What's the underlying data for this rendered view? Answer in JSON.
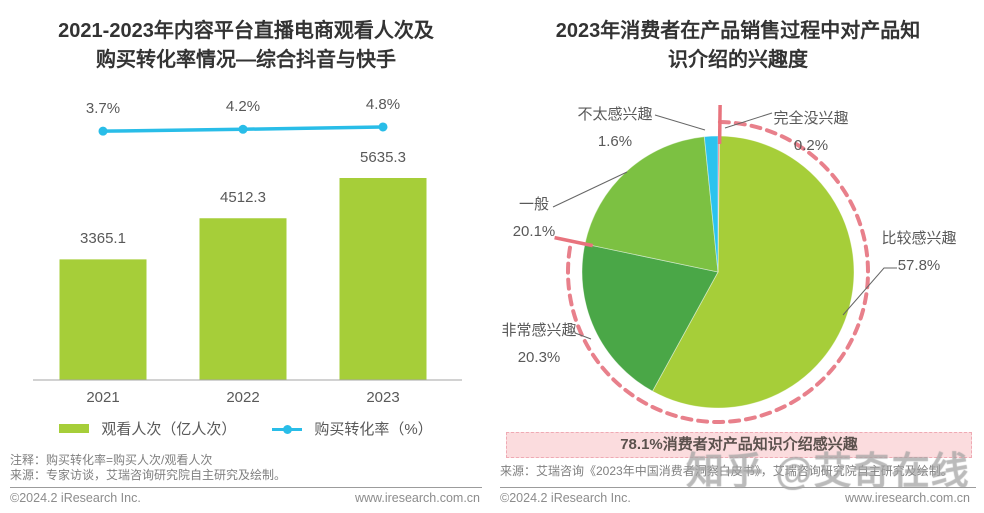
{
  "watermark": {
    "text": "知乎 @艾奇在线"
  },
  "left_panel": {
    "title_line1": "2021-2023年内容平台直播电商观看人次及",
    "title_line2": "购买转化率情况—综合抖音与快手",
    "note1": "注释：购买转化率=购买人次/观看人次",
    "note2": "来源：专家访谈，艾瑞咨询研究院自主研究及绘制。",
    "footer_left": "©2024.2 iResearch Inc.",
    "footer_right": "www.iresearch.com.cn"
  },
  "right_panel": {
    "title_line1": "2023年消费者在产品销售过程中对产品知",
    "title_line2": "识介绍的兴趣度",
    "note1": "来源：艾瑞咨询《2023年中国消费者洞察白皮书》，艾瑞咨询研究院自主研究及绘制。",
    "footer_left": "©2024.2 iResearch Inc.",
    "footer_right": "www.iresearch.com.cn"
  },
  "chart_data": [
    {
      "type": "bar",
      "title": "2021-2023年内容平台直播电商观看人次及购买转化率情况—综合抖音与快手",
      "categories": [
        "2021",
        "2022",
        "2023"
      ],
      "series": [
        {
          "name": "观看人次（亿人次）",
          "type": "bar",
          "values": [
            3365.1,
            4512.3,
            5635.3
          ],
          "color": "#a6ce39"
        },
        {
          "name": "购买转化率（%）",
          "type": "line",
          "values": [
            3.7,
            4.2,
            4.8
          ],
          "unit": "%",
          "color": "#29bde8"
        }
      ],
      "legend_position": "bottom",
      "grid": false,
      "ylim": [
        0,
        6000
      ]
    },
    {
      "type": "pie",
      "title": "2023年消费者在产品销售过程中对产品知识介绍的兴趣度",
      "slices": [
        {
          "name": "完全没兴趣",
          "value": 0.2,
          "color": "#e8737d"
        },
        {
          "name": "比较感兴趣",
          "value": 57.8,
          "color": "#a6ce39"
        },
        {
          "name": "非常感兴趣",
          "value": 20.3,
          "color": "#4aa747"
        },
        {
          "name": "一般",
          "value": 20.1,
          "color": "#7cc142"
        },
        {
          "name": "不太感兴趣",
          "value": 1.6,
          "color": "#2bc3ee"
        }
      ],
      "annotation": {
        "arc_pct": 78.1,
        "arc_color": "#e8808b",
        "text": "78.1%消费者对产品知识介绍感兴趣"
      }
    }
  ]
}
